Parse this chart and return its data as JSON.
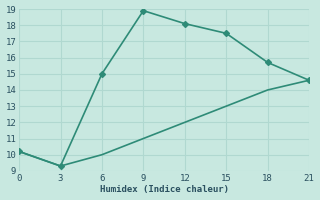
{
  "line1_x": [
    0,
    3,
    6,
    9,
    12,
    15,
    18,
    21
  ],
  "line1_y": [
    10.2,
    9.3,
    15.0,
    18.9,
    18.1,
    17.5,
    15.7,
    14.6
  ],
  "line2_x": [
    0,
    3,
    6,
    9,
    12,
    15,
    18,
    21
  ],
  "line2_y": [
    10.2,
    9.3,
    10.0,
    11.0,
    12.0,
    13.0,
    14.0,
    14.6
  ],
  "line_color": "#2e8b77",
  "bg_color": "#c8e8e0",
  "grid_color": "#b0d8d0",
  "xlabel": "Humidex (Indice chaleur)",
  "xlim": [
    0,
    21
  ],
  "ylim": [
    9,
    19
  ],
  "xticks": [
    0,
    3,
    6,
    9,
    12,
    15,
    18,
    21
  ],
  "yticks": [
    9,
    10,
    11,
    12,
    13,
    14,
    15,
    16,
    17,
    18,
    19
  ],
  "font_color": "#2a5060",
  "marker": "D",
  "markersize": 3,
  "linewidth": 1.2
}
